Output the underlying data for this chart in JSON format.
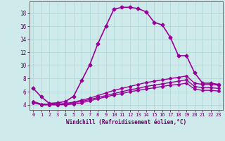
{
  "xlabel": "Windchill (Refroidissement éolien,°C)",
  "background_color": "#ceeaea",
  "grid_color": "#b0d8d8",
  "line_color": "#990099",
  "xlim": [
    -0.5,
    23.5
  ],
  "ylim": [
    3.2,
    19.8
  ],
  "xticks": [
    0,
    1,
    2,
    3,
    4,
    5,
    6,
    7,
    8,
    9,
    10,
    11,
    12,
    13,
    14,
    15,
    16,
    17,
    18,
    19,
    20,
    21,
    22,
    23
  ],
  "yticks": [
    4,
    6,
    8,
    10,
    12,
    14,
    16,
    18
  ],
  "series": [
    {
      "x": [
        0,
        1,
        2,
        3,
        4,
        5,
        6,
        7,
        8,
        9,
        10,
        11,
        12,
        13,
        14,
        15,
        16,
        17,
        18,
        19,
        20,
        21,
        22,
        23
      ],
      "y": [
        6.5,
        5.2,
        4.2,
        4.3,
        4.5,
        5.3,
        7.7,
        10.1,
        13.3,
        16.0,
        18.6,
        18.9,
        18.9,
        18.7,
        18.2,
        16.6,
        16.2,
        14.3,
        11.5,
        11.5,
        8.9,
        7.3,
        7.3,
        7.1
      ],
      "marker": "D",
      "markersize": 2.5,
      "linewidth": 1.2
    },
    {
      "x": [
        0,
        1,
        2,
        3,
        4,
        5,
        6,
        7,
        8,
        9,
        10,
        11,
        12,
        13,
        14,
        15,
        16,
        17,
        18,
        19,
        20,
        21,
        22,
        23
      ],
      "y": [
        4.5,
        4.1,
        4.1,
        4.1,
        4.2,
        4.4,
        4.7,
        5.0,
        5.4,
        5.8,
        6.2,
        6.5,
        6.8,
        7.1,
        7.4,
        7.6,
        7.8,
        8.0,
        8.2,
        8.4,
        7.3,
        7.1,
        7.1,
        7.0
      ],
      "marker": "D",
      "markersize": 2.0,
      "linewidth": 1.0
    },
    {
      "x": [
        0,
        1,
        2,
        3,
        4,
        5,
        6,
        7,
        8,
        9,
        10,
        11,
        12,
        13,
        14,
        15,
        16,
        17,
        18,
        19,
        20,
        21,
        22,
        23
      ],
      "y": [
        4.4,
        4.0,
        4.0,
        4.0,
        4.1,
        4.3,
        4.5,
        4.8,
        5.1,
        5.4,
        5.7,
        6.0,
        6.3,
        6.5,
        6.8,
        7.0,
        7.2,
        7.4,
        7.6,
        7.8,
        6.8,
        6.6,
        6.6,
        6.5
      ],
      "marker": "D",
      "markersize": 2.0,
      "linewidth": 1.0
    },
    {
      "x": [
        0,
        1,
        2,
        3,
        4,
        5,
        6,
        7,
        8,
        9,
        10,
        11,
        12,
        13,
        14,
        15,
        16,
        17,
        18,
        19,
        20,
        21,
        22,
        23
      ],
      "y": [
        4.3,
        4.0,
        4.0,
        4.0,
        4.0,
        4.1,
        4.3,
        4.6,
        4.9,
        5.2,
        5.5,
        5.7,
        6.0,
        6.2,
        6.4,
        6.6,
        6.8,
        7.0,
        7.1,
        7.3,
        6.4,
        6.2,
        6.2,
        6.1
      ],
      "marker": "D",
      "markersize": 2.0,
      "linewidth": 1.0
    }
  ]
}
